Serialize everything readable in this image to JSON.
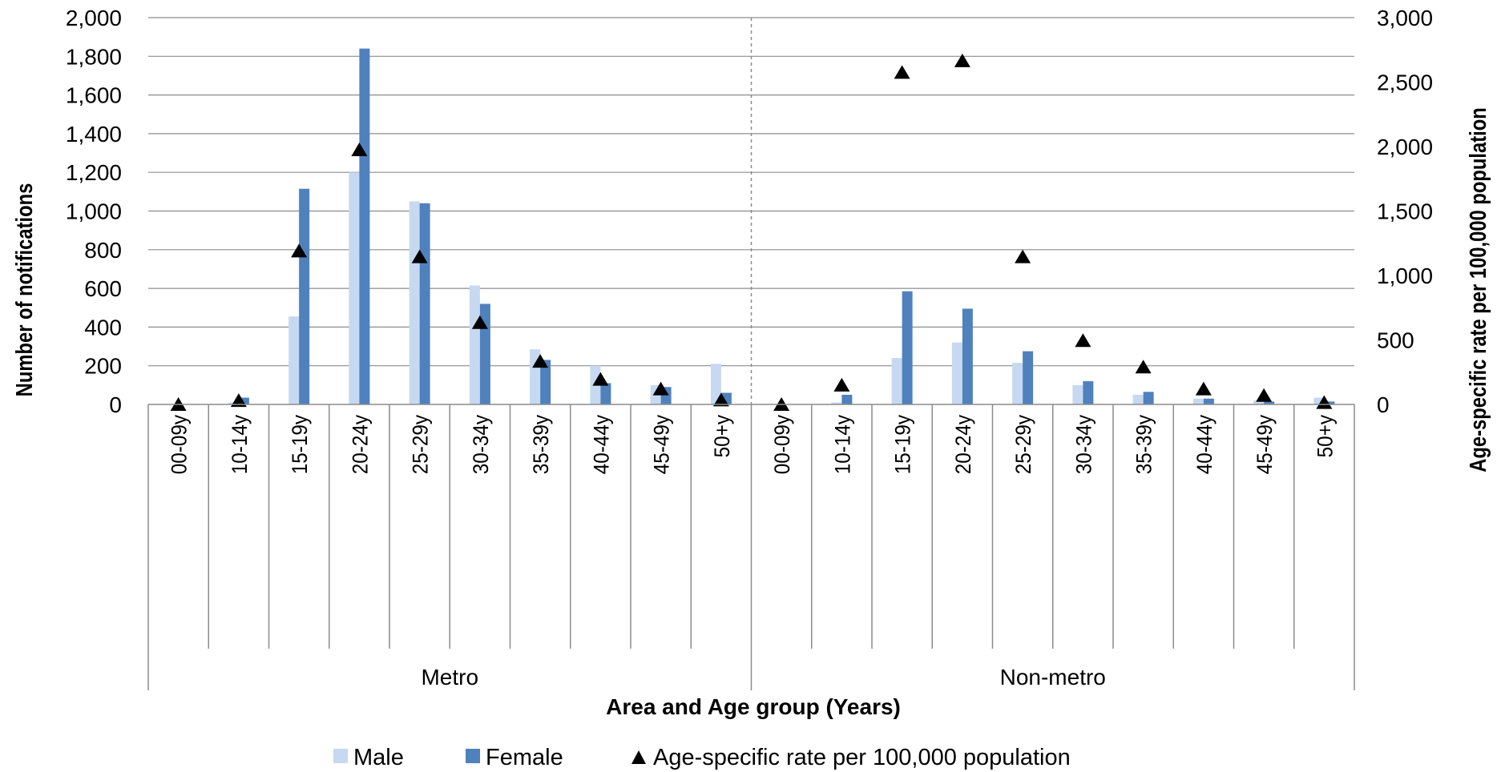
{
  "chart_data": {
    "type": "bar",
    "xlabel": "Area and Age group (Years)",
    "ylabel": "Number of notifications",
    "y2label": "Age-specific rate per 100,000 population",
    "ylim": [
      0,
      2000
    ],
    "y2lim": [
      0,
      3000
    ],
    "y_ticks": [
      "0",
      "200",
      "400",
      "600",
      "800",
      "1,000",
      "1,200",
      "1,400",
      "1,600",
      "1,800",
      "2,000"
    ],
    "y2_ticks": [
      "0",
      "500",
      "1,000",
      "1,500",
      "2,000",
      "2,500",
      "3,000"
    ],
    "groups": [
      "Metro",
      "Non-metro"
    ],
    "categories": [
      "00-09y",
      "10-14y",
      "15-19y",
      "20-24y",
      "25-29y",
      "30-34y",
      "35-39y",
      "40-44y",
      "45-49y",
      "50+y"
    ],
    "series": [
      {
        "name": "Male",
        "kind": "bar",
        "axis": "left",
        "color": "#c6d9f1",
        "values": [
          [
            0,
            10,
            455,
            1200,
            1050,
            615,
            285,
            200,
            100,
            210
          ],
          [
            0,
            10,
            240,
            320,
            215,
            100,
            50,
            30,
            20,
            35
          ]
        ]
      },
      {
        "name": "Female",
        "kind": "bar",
        "axis": "left",
        "color": "#4f81bd",
        "values": [
          [
            0,
            35,
            1115,
            1840,
            1040,
            520,
            230,
            110,
            90,
            60
          ],
          [
            0,
            50,
            585,
            495,
            275,
            120,
            65,
            30,
            15,
            15
          ]
        ]
      },
      {
        "name": "Age-specific rate per 100,000 population",
        "kind": "marker",
        "axis": "right",
        "color": "#000000",
        "values": [
          [
            0,
            30,
            1190,
            1975,
            1145,
            635,
            335,
            195,
            120,
            35
          ],
          [
            0,
            150,
            2575,
            2665,
            1145,
            495,
            290,
            120,
            70,
            15
          ]
        ]
      }
    ]
  }
}
